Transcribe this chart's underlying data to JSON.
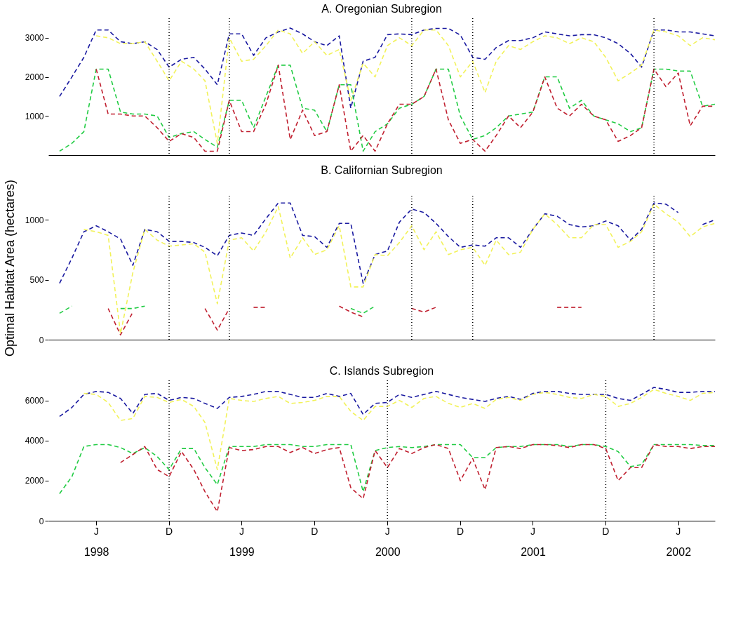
{
  "chart_data": [
    {
      "type": "line",
      "title": "A. Oregonian Subregion",
      "line_style": "dashed",
      "tick_labels": "y",
      "x": [
        "1998-03",
        "1998-04",
        "1998-05",
        "1998-06",
        "1998-07",
        "1998-08",
        "1998-09",
        "1998-10",
        "1998-11",
        "1998-12",
        "1999-01",
        "1999-02",
        "1999-03",
        "1999-04",
        "1999-05",
        "1999-06",
        "1999-07",
        "1999-08",
        "1999-09",
        "1999-10",
        "1999-11",
        "1999-12",
        "2000-01",
        "2000-02",
        "2000-03",
        "2000-04",
        "2000-05",
        "2000-06",
        "2000-07",
        "2000-08",
        "2000-09",
        "2000-10",
        "2000-11",
        "2000-12",
        "2001-01",
        "2001-02",
        "2001-03",
        "2001-04",
        "2001-05",
        "2001-06",
        "2001-07",
        "2001-08",
        "2001-09",
        "2001-10",
        "2001-11",
        "2001-12",
        "2002-01",
        "2002-02",
        "2002-03",
        "2002-04",
        "2002-05",
        "2002-06",
        "2002-07",
        "2002-08",
        "2002-09"
      ],
      "xlim": [
        "1998-02",
        "2002-09"
      ],
      "ylim": [
        0,
        3500
      ],
      "yticks": [
        1000,
        2000,
        3000
      ],
      "ref_lines": [
        {
          "axis": "x",
          "value": "1998-12",
          "line_style": "dotted",
          "color": "#000000"
        },
        {
          "axis": "x",
          "value": "1999-05",
          "line_style": "dotted",
          "color": "#000000"
        },
        {
          "axis": "x",
          "value": "2000-08",
          "line_style": "dotted",
          "color": "#000000"
        },
        {
          "axis": "x",
          "value": "2001-01",
          "line_style": "dotted",
          "color": "#000000"
        },
        {
          "axis": "x",
          "value": "2002-04",
          "line_style": "dotted",
          "color": "#000000"
        }
      ],
      "series": [
        {
          "color": "#1a1aa0",
          "values": [
            1500,
            2000,
            2500,
            3200,
            3200,
            2900,
            2850,
            2900,
            2700,
            2250,
            2450,
            2500,
            2200,
            1800,
            3100,
            3100,
            2550,
            3000,
            3150,
            3250,
            3100,
            2900,
            2800,
            3050,
            1200,
            2400,
            2500,
            3080,
            3100,
            3080,
            3200,
            3240,
            3240,
            3070,
            2500,
            2450,
            2750,
            2930,
            2930,
            3000,
            3150,
            3100,
            3050,
            3080,
            3080,
            3000,
            2850,
            2600,
            2250,
            3200,
            3200,
            3150,
            3150,
            3100,
            3050
          ]
        },
        {
          "color": "#f2f25a",
          "values": [
            null,
            null,
            null,
            3050,
            3000,
            2850,
            2850,
            2900,
            2400,
            1900,
            2400,
            2200,
            1900,
            300,
            3000,
            2400,
            2450,
            2800,
            3200,
            3100,
            2600,
            2900,
            2550,
            2700,
            1400,
            2350,
            2000,
            2800,
            3000,
            2800,
            3200,
            3200,
            2800,
            2000,
            2400,
            1600,
            2400,
            2800,
            2700,
            2900,
            3050,
            3000,
            2850,
            3000,
            2900,
            2500,
            1900,
            2100,
            2300,
            3200,
            3150,
            3050,
            2800,
            3000,
            2950
          ]
        },
        {
          "color": "#22cc44",
          "values": [
            100,
            300,
            600,
            2200,
            2200,
            1100,
            1050,
            1050,
            1000,
            450,
            550,
            600,
            400,
            200,
            1400,
            1400,
            700,
            1500,
            2300,
            2300,
            1200,
            1150,
            600,
            1800,
            1800,
            100,
            600,
            800,
            1200,
            1300,
            1500,
            2200,
            2200,
            1000,
            400,
            500,
            700,
            1000,
            1050,
            1100,
            2000,
            2000,
            1200,
            1400,
            1000,
            900,
            800,
            600,
            700,
            2200,
            2200,
            2150,
            2150,
            1250,
            1300
          ]
        },
        {
          "color": "#c02030",
          "values": [
            null,
            null,
            null,
            2200,
            1050,
            1050,
            1000,
            1000,
            700,
            350,
            550,
            450,
            100,
            100,
            1400,
            600,
            600,
            1300,
            2300,
            400,
            1150,
            500,
            600,
            1800,
            100,
            500,
            100,
            800,
            1300,
            1300,
            1500,
            2200,
            900,
            300,
            400,
            100,
            500,
            1000,
            700,
            1100,
            2000,
            1200,
            1000,
            1300,
            1000,
            900,
            350,
            500,
            700,
            2200,
            1750,
            2100,
            750,
            1250,
            1250
          ]
        }
      ]
    },
    {
      "type": "line",
      "title": "B. Californian Subregion",
      "ylabel": "Optimal Habitat Area (hectares)",
      "line_style": "dashed",
      "tick_labels": "y",
      "x": [
        "1998-03",
        "1998-04",
        "1998-05",
        "1998-06",
        "1998-07",
        "1998-08",
        "1998-09",
        "1998-10",
        "1998-11",
        "1998-12",
        "1999-01",
        "1999-02",
        "1999-03",
        "1999-04",
        "1999-05",
        "1999-06",
        "1999-07",
        "1999-08",
        "1999-09",
        "1999-10",
        "1999-11",
        "1999-12",
        "2000-01",
        "2000-02",
        "2000-03",
        "2000-04",
        "2000-05",
        "2000-06",
        "2000-07",
        "2000-08",
        "2000-09",
        "2000-10",
        "2000-11",
        "2000-12",
        "2001-01",
        "2001-02",
        "2001-03",
        "2001-04",
        "2001-05",
        "2001-06",
        "2001-07",
        "2001-08",
        "2001-09",
        "2001-10",
        "2001-11",
        "2001-12",
        "2002-01",
        "2002-02",
        "2002-03",
        "2002-04",
        "2002-05",
        "2002-06",
        "2002-07",
        "2002-08",
        "2002-09"
      ],
      "xlim": [
        "1998-02",
        "2002-09"
      ],
      "ylim": [
        0,
        1200
      ],
      "yticks": [
        0,
        500,
        1000
      ],
      "ref_lines": [
        {
          "axis": "x",
          "value": "1998-12",
          "line_style": "dotted",
          "color": "#000000"
        },
        {
          "axis": "x",
          "value": "1999-05",
          "line_style": "dotted",
          "color": "#000000"
        },
        {
          "axis": "x",
          "value": "2000-08",
          "line_style": "dotted",
          "color": "#000000"
        },
        {
          "axis": "x",
          "value": "2001-01",
          "line_style": "dotted",
          "color": "#000000"
        },
        {
          "axis": "x",
          "value": "2002-04",
          "line_style": "dotted",
          "color": "#000000"
        }
      ],
      "series": [
        {
          "color": "#1a1aa0",
          "values": [
            470,
            680,
            900,
            950,
            900,
            840,
            620,
            920,
            900,
            820,
            820,
            810,
            770,
            700,
            870,
            890,
            870,
            1010,
            1140,
            1140,
            870,
            860,
            770,
            970,
            970,
            470,
            710,
            740,
            980,
            1090,
            1060,
            970,
            860,
            770,
            790,
            780,
            850,
            850,
            770,
            920,
            1050,
            1030,
            960,
            940,
            950,
            990,
            950,
            830,
            920,
            1140,
            1130,
            1060,
            null,
            960,
            1000
          ]
        },
        {
          "color": "#f2f25a",
          "values": [
            null,
            null,
            920,
            900,
            870,
            50,
            560,
            920,
            830,
            780,
            790,
            800,
            730,
            300,
            830,
            850,
            740,
            900,
            1110,
            680,
            850,
            710,
            750,
            950,
            440,
            440,
            710,
            700,
            810,
            950,
            750,
            900,
            710,
            750,
            770,
            620,
            830,
            710,
            730,
            920,
            1050,
            960,
            850,
            850,
            960,
            960,
            770,
            820,
            900,
            1130,
            1050,
            980,
            860,
            940,
            970
          ]
        },
        {
          "color": "#22cc44",
          "values": [
            220,
            280,
            null,
            null,
            null,
            260,
            260,
            280,
            null,
            null,
            null,
            null,
            null,
            null,
            null,
            null,
            null,
            null,
            null,
            null,
            null,
            null,
            null,
            null,
            260,
            220,
            280,
            null,
            null,
            null,
            null,
            null,
            null,
            null,
            null,
            null,
            null,
            null,
            null,
            null,
            null,
            null,
            null,
            null,
            null,
            null,
            null,
            null,
            null,
            null,
            null,
            null,
            null,
            null,
            null
          ]
        },
        {
          "color": "#c02030",
          "values": [
            null,
            null,
            null,
            null,
            260,
            40,
            230,
            null,
            null,
            null,
            null,
            null,
            260,
            80,
            260,
            null,
            270,
            270,
            null,
            null,
            null,
            null,
            null,
            280,
            230,
            190,
            null,
            null,
            null,
            260,
            230,
            270,
            null,
            null,
            null,
            null,
            null,
            null,
            null,
            null,
            null,
            270,
            270,
            270,
            null,
            null,
            null,
            null,
            null,
            null,
            null,
            null,
            null,
            null,
            null
          ]
        }
      ]
    },
    {
      "type": "line",
      "title": "C. Islands Subregion",
      "line_style": "dashed",
      "x": [
        "1998-03",
        "1998-04",
        "1998-05",
        "1998-06",
        "1998-07",
        "1998-08",
        "1998-09",
        "1998-10",
        "1998-11",
        "1998-12",
        "1999-01",
        "1999-02",
        "1999-03",
        "1999-04",
        "1999-05",
        "1999-06",
        "1999-07",
        "1999-08",
        "1999-09",
        "1999-10",
        "1999-11",
        "1999-12",
        "2000-01",
        "2000-02",
        "2000-03",
        "2000-04",
        "2000-05",
        "2000-06",
        "2000-07",
        "2000-08",
        "2000-09",
        "2000-10",
        "2000-11",
        "2000-12",
        "2001-01",
        "2001-02",
        "2001-03",
        "2001-04",
        "2001-05",
        "2001-06",
        "2001-07",
        "2001-08",
        "2001-09",
        "2001-10",
        "2001-11",
        "2001-12",
        "2002-01",
        "2002-02",
        "2002-03",
        "2002-04",
        "2002-05",
        "2002-06",
        "2002-07",
        "2002-08",
        "2002-09"
      ],
      "xlim": [
        "1998-02",
        "2002-09"
      ],
      "xticks": [
        {
          "value": "1998-06",
          "label": "1998"
        },
        {
          "value": "1998-12",
          "label": null
        },
        {
          "value": "1999-06",
          "label": "1999"
        },
        {
          "value": "1999-12",
          "label": null
        },
        {
          "value": "2000-06",
          "label": "2000"
        },
        {
          "value": "2000-12",
          "label": null
        },
        {
          "value": "2001-06",
          "label": "2001"
        },
        {
          "value": "2001-12",
          "label": null
        },
        {
          "value": "2002-06",
          "label": "2002"
        }
      ],
      "annotations": [
        "J",
        "D",
        "J",
        "D",
        "J",
        "D",
        "J",
        "D",
        "J"
      ],
      "ylim": [
        0,
        7000
      ],
      "yticks": [
        0,
        2000,
        4000,
        6000
      ],
      "ref_lines": [
        {
          "axis": "x",
          "value": "1998-12",
          "line_style": "dotted",
          "color": "#000000"
        },
        {
          "axis": "x",
          "value": "2000-06",
          "line_style": "dotted",
          "color": "#000000"
        },
        {
          "axis": "x",
          "value": "2001-12",
          "line_style": "dotted",
          "color": "#000000"
        }
      ],
      "series": [
        {
          "color": "#1a1aa0",
          "values": [
            5200,
            5650,
            6300,
            6450,
            6400,
            6100,
            5350,
            6300,
            6350,
            6000,
            6150,
            6100,
            5850,
            5600,
            6150,
            6200,
            6300,
            6450,
            6450,
            6300,
            6150,
            6150,
            6350,
            6200,
            6350,
            5300,
            5850,
            5900,
            6300,
            6150,
            6300,
            6450,
            6300,
            6150,
            6050,
            5950,
            6100,
            6200,
            6050,
            6350,
            6450,
            6450,
            6350,
            6300,
            6300,
            6300,
            6100,
            6000,
            6300,
            6650,
            6550,
            6400,
            6400,
            6450,
            6450
          ]
        },
        {
          "color": "#f2f25a",
          "values": [
            null,
            null,
            6350,
            6300,
            5900,
            5000,
            5100,
            6200,
            6150,
            5900,
            6050,
            5700,
            4900,
            2550,
            6100,
            6000,
            5950,
            6100,
            6200,
            5850,
            5900,
            6000,
            6200,
            6200,
            5450,
            5000,
            5700,
            5700,
            6000,
            5650,
            6100,
            6200,
            5850,
            5650,
            5850,
            5600,
            6050,
            6150,
            6000,
            6300,
            6400,
            6300,
            6150,
            6100,
            6300,
            6200,
            5700,
            5850,
            6150,
            6550,
            6350,
            6200,
            6000,
            6350,
            6400
          ]
        },
        {
          "color": "#22cc44",
          "values": [
            1350,
            2200,
            3700,
            3800,
            3800,
            3650,
            3350,
            3650,
            3200,
            2550,
            3600,
            3600,
            2650,
            1800,
            3700,
            3700,
            3700,
            3800,
            3800,
            3800,
            3700,
            3700,
            3800,
            3800,
            3800,
            1450,
            3500,
            3650,
            3700,
            3650,
            3700,
            3800,
            3800,
            3800,
            3150,
            3150,
            3650,
            3700,
            3700,
            3800,
            3800,
            3800,
            3700,
            3800,
            3800,
            3700,
            3450,
            2700,
            2800,
            3800,
            3800,
            3800,
            3800,
            3750,
            3750
          ]
        },
        {
          "color": "#c02030",
          "values": [
            null,
            null,
            null,
            null,
            null,
            2900,
            3300,
            3700,
            2550,
            2200,
            3450,
            2550,
            1450,
            450,
            3650,
            3500,
            3550,
            3700,
            3700,
            3400,
            3650,
            3350,
            3550,
            3650,
            1650,
            1100,
            3500,
            2650,
            3600,
            3350,
            3650,
            3800,
            3600,
            2000,
            3100,
            1550,
            3650,
            3700,
            3600,
            3800,
            3800,
            3750,
            3650,
            3800,
            3800,
            3600,
            2000,
            2650,
            2650,
            3800,
            3700,
            3700,
            3600,
            3700,
            3700
          ]
        }
      ]
    }
  ]
}
